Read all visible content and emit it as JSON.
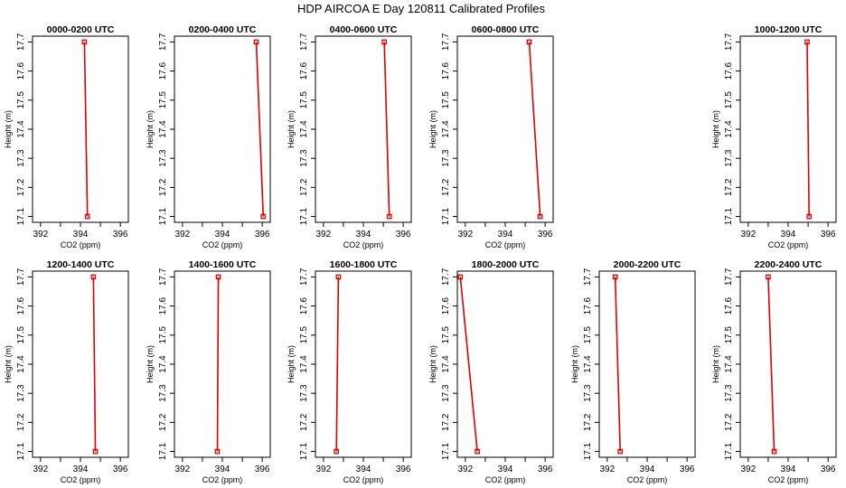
{
  "title": "HDP AIRCOA E  Day 120811  Calibrated Profiles",
  "chart_data": [
    {
      "type": "line",
      "title": "0000-0200 UTC",
      "xlabel": "CO2 (ppm)",
      "ylabel": "Height (m)",
      "xlim": [
        391.6,
        396.4
      ],
      "ylim": [
        17.08,
        17.72
      ],
      "xticks": [
        "392",
        "394",
        "396"
      ],
      "yticks": [
        "17.1",
        "17.2",
        "17.3",
        "17.4",
        "17.5",
        "17.6",
        "17.7"
      ],
      "x": [
        394.2,
        394.35
      ],
      "y": [
        17.7,
        17.1
      ]
    },
    {
      "type": "line",
      "title": "0200-0400 UTC",
      "xlabel": "CO2 (ppm)",
      "ylabel": "Height (m)",
      "xlim": [
        391.6,
        396.4
      ],
      "ylim": [
        17.08,
        17.72
      ],
      "xticks": [
        "392",
        "394",
        "396"
      ],
      "yticks": [
        "17.1",
        "17.2",
        "17.3",
        "17.4",
        "17.5",
        "17.6",
        "17.7"
      ],
      "x": [
        395.7,
        396.05
      ],
      "y": [
        17.7,
        17.1
      ]
    },
    {
      "type": "line",
      "title": "0400-0600 UTC",
      "xlabel": "CO2 (ppm)",
      "ylabel": "Height (m)",
      "xlim": [
        391.6,
        396.4
      ],
      "ylim": [
        17.08,
        17.72
      ],
      "xticks": [
        "392",
        "394",
        "396"
      ],
      "yticks": [
        "17.1",
        "17.2",
        "17.3",
        "17.4",
        "17.5",
        "17.6",
        "17.7"
      ],
      "x": [
        395.05,
        395.3
      ],
      "y": [
        17.7,
        17.1
      ]
    },
    {
      "type": "line",
      "title": "0600-0800 UTC",
      "xlabel": "CO2 (ppm)",
      "ylabel": "Height (m)",
      "xlim": [
        391.6,
        396.4
      ],
      "ylim": [
        17.08,
        17.72
      ],
      "xticks": [
        "392",
        "394",
        "396"
      ],
      "yticks": [
        "17.1",
        "17.2",
        "17.3",
        "17.4",
        "17.5",
        "17.6",
        "17.7"
      ],
      "x": [
        395.2,
        395.75
      ],
      "y": [
        17.7,
        17.1
      ]
    },
    {
      "type": "line",
      "title": "1000-1200 UTC",
      "xlabel": "CO2 (ppm)",
      "ylabel": "Height (m)",
      "xlim": [
        391.6,
        396.4
      ],
      "ylim": [
        17.08,
        17.72
      ],
      "xticks": [
        "392",
        "394",
        "396"
      ],
      "yticks": [
        "17.1",
        "17.2",
        "17.3",
        "17.4",
        "17.5",
        "17.6",
        "17.7"
      ],
      "x": [
        394.95,
        395.05
      ],
      "y": [
        17.7,
        17.1
      ]
    },
    {
      "type": "line",
      "title": "1200-1400 UTC",
      "xlabel": "CO2 (ppm)",
      "ylabel": "Height (m)",
      "xlim": [
        391.6,
        396.4
      ],
      "ylim": [
        17.08,
        17.72
      ],
      "xticks": [
        "392",
        "394",
        "396"
      ],
      "yticks": [
        "17.1",
        "17.2",
        "17.3",
        "17.4",
        "17.5",
        "17.6",
        "17.7"
      ],
      "x": [
        394.65,
        394.75
      ],
      "y": [
        17.7,
        17.1
      ]
    },
    {
      "type": "line",
      "title": "1400-1600 UTC",
      "xlabel": "CO2 (ppm)",
      "ylabel": "Height (m)",
      "xlim": [
        391.6,
        396.4
      ],
      "ylim": [
        17.08,
        17.72
      ],
      "xticks": [
        "392",
        "394",
        "396"
      ],
      "yticks": [
        "17.1",
        "17.2",
        "17.3",
        "17.4",
        "17.5",
        "17.6",
        "17.7"
      ],
      "x": [
        393.8,
        393.75
      ],
      "y": [
        17.7,
        17.1
      ]
    },
    {
      "type": "line",
      "title": "1600-1800 UTC",
      "xlabel": "CO2 (ppm)",
      "ylabel": "Height (m)",
      "xlim": [
        391.6,
        396.4
      ],
      "ylim": [
        17.08,
        17.72
      ],
      "xticks": [
        "392",
        "394",
        "396"
      ],
      "yticks": [
        "17.1",
        "17.2",
        "17.3",
        "17.4",
        "17.5",
        "17.6",
        "17.7"
      ],
      "x": [
        392.75,
        392.65
      ],
      "y": [
        17.7,
        17.1
      ]
    },
    {
      "type": "line",
      "title": "1800-2000 UTC",
      "xlabel": "CO2 (ppm)",
      "ylabel": "Height (m)",
      "xlim": [
        391.6,
        396.4
      ],
      "ylim": [
        17.08,
        17.72
      ],
      "xticks": [
        "392",
        "394",
        "396"
      ],
      "yticks": [
        "17.1",
        "17.2",
        "17.3",
        "17.4",
        "17.5",
        "17.6",
        "17.7"
      ],
      "x": [
        391.75,
        392.6
      ],
      "y": [
        17.7,
        17.1
      ]
    },
    {
      "type": "line",
      "title": "2000-2200 UTC",
      "xlabel": "CO2 (ppm)",
      "ylabel": "Height (m)",
      "xlim": [
        391.6,
        396.4
      ],
      "ylim": [
        17.08,
        17.72
      ],
      "xticks": [
        "392",
        "394",
        "396"
      ],
      "yticks": [
        "17.1",
        "17.2",
        "17.3",
        "17.4",
        "17.5",
        "17.6",
        "17.7"
      ],
      "x": [
        392.4,
        392.65
      ],
      "y": [
        17.7,
        17.1
      ]
    },
    {
      "type": "line",
      "title": "2200-2400 UTC",
      "xlabel": "CO2 (ppm)",
      "ylabel": "Height (m)",
      "xlim": [
        391.6,
        396.4
      ],
      "ylim": [
        17.08,
        17.72
      ],
      "xticks": [
        "392",
        "394",
        "396"
      ],
      "yticks": [
        "17.1",
        "17.2",
        "17.3",
        "17.4",
        "17.5",
        "17.6",
        "17.7"
      ],
      "x": [
        393.0,
        393.3
      ],
      "y": [
        17.7,
        17.1
      ]
    }
  ],
  "colors": {
    "line": "#e00000",
    "marker": "#e00000",
    "axis": "#000000"
  }
}
